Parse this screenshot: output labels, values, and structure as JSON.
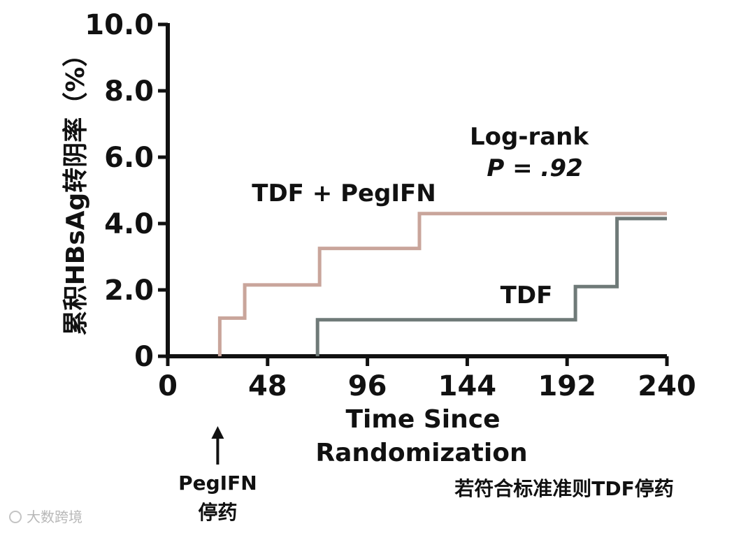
{
  "chart_data": {
    "type": "line",
    "step": true,
    "xlabel": [
      "Time Since",
      "Randomization"
    ],
    "ylabel": "累积HBsAg转阴率（%）",
    "xlim": [
      0,
      240
    ],
    "ylim": [
      0,
      10
    ],
    "x_ticks": [
      "0",
      "48",
      "96",
      "144",
      "192",
      "240"
    ],
    "y_ticks": [
      "0",
      "2.0",
      "4.0",
      "6.0",
      "8.0",
      "10.0"
    ],
    "grid": false,
    "series": [
      {
        "name": "TDF + PegIFN",
        "color": "#c9a59b",
        "points": [
          [
            25,
            0
          ],
          [
            25,
            1.15
          ],
          [
            37,
            1.15
          ],
          [
            37,
            2.15
          ],
          [
            73,
            2.15
          ],
          [
            73,
            3.25
          ],
          [
            121,
            3.25
          ],
          [
            121,
            4.3
          ],
          [
            240,
            4.3
          ]
        ]
      },
      {
        "name": "TDF",
        "color": "#6f7a78",
        "points": [
          [
            72,
            0
          ],
          [
            72,
            1.1
          ],
          [
            196,
            1.1
          ],
          [
            196,
            2.1
          ],
          [
            216,
            2.1
          ],
          [
            216,
            4.15
          ],
          [
            240,
            4.15
          ]
        ]
      }
    ],
    "annotations": {
      "logrank_line1": "Log-rank",
      "logrank_line2": "P = .92",
      "series_label_1": "TDF + PegIFN",
      "series_label_2": "TDF",
      "arrow_label_line1": "PegIFN",
      "arrow_label_line2": "停药",
      "footnote": "若符合标准准则TDF停药"
    },
    "arrow_x": 24
  },
  "watermark": "大数跨境"
}
